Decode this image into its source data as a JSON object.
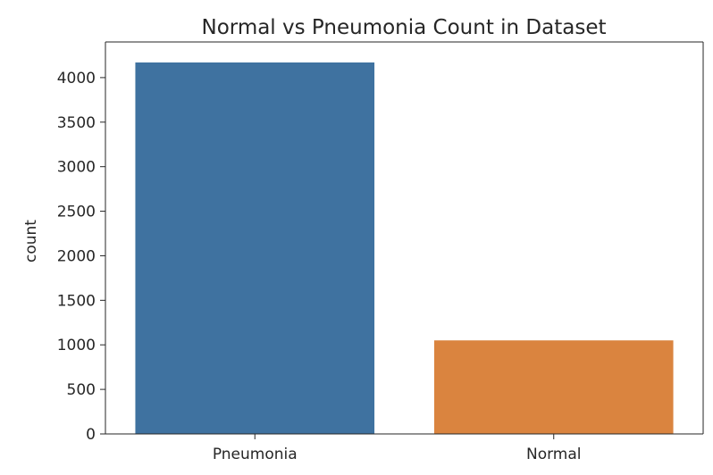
{
  "chart_data": {
    "type": "bar",
    "title": "Normal vs Pneumonia Count in Dataset",
    "xlabel": "",
    "ylabel": "count",
    "categories": [
      "Pneumonia",
      "Normal"
    ],
    "values": [
      4170,
      1050
    ],
    "colors": [
      "#3f72a0",
      "#da843f"
    ],
    "ylim": [
      0,
      4400
    ],
    "yticks": [
      0,
      500,
      1000,
      1500,
      2000,
      2500,
      3000,
      3500,
      4000
    ],
    "grid": false,
    "legend": "none"
  }
}
